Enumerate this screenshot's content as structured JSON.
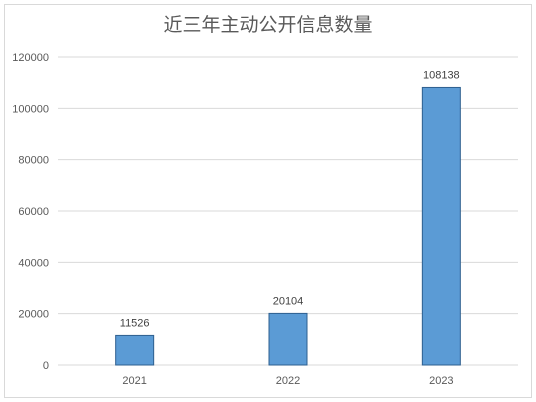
{
  "chart_data": {
    "type": "bar",
    "title": "近三年主动公开信息数量",
    "categories": [
      "2021",
      "2022",
      "2023"
    ],
    "values": [
      11526,
      20104,
      108138
    ],
    "data_labels": [
      "11526",
      "20104",
      "108138"
    ],
    "ylim": [
      0,
      120000
    ],
    "yticks": [
      0,
      20000,
      40000,
      60000,
      80000,
      100000,
      120000
    ],
    "ytick_labels": [
      "0",
      "20000",
      "40000",
      "60000",
      "80000",
      "100000",
      "120000"
    ],
    "xlabel": "",
    "ylabel": "",
    "grid": true,
    "legend": "none",
    "colors": {
      "bar": "#5b9bd5",
      "bar_edge": "#2e5f8f",
      "grid": "#d9d9d9",
      "text": "#595959"
    }
  }
}
